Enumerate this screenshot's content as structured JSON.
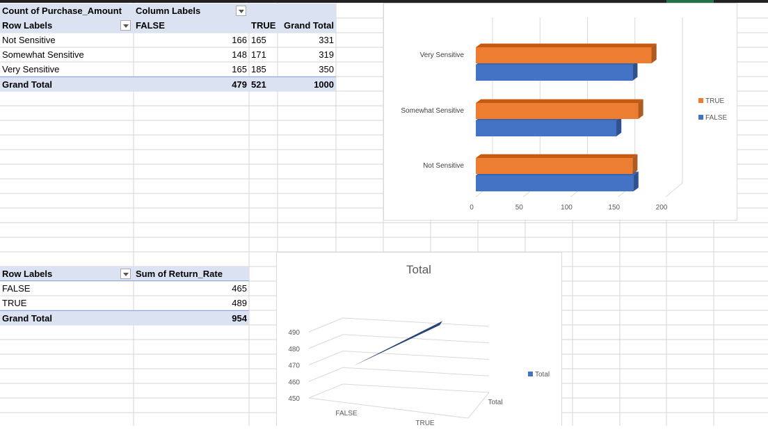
{
  "pivot1": {
    "value_field": "Count of Purchase_Amount",
    "col_labels": "Column Labels",
    "row_labels": "Row Labels",
    "col_false": "FALSE",
    "col_true": "TRUE",
    "col_grand": "Grand Total",
    "rows": [
      {
        "label": "Not Sensitive",
        "false": "166",
        "true": "165",
        "total": "331"
      },
      {
        "label": "Somewhat Sensitive",
        "false": "148",
        "true": "171",
        "total": "319"
      },
      {
        "label": "Very Sensitive",
        "false": "165",
        "true": "185",
        "total": "350"
      }
    ],
    "grand": {
      "label": "Grand Total",
      "false": "479",
      "true": "521",
      "total": "1000"
    }
  },
  "pivot2": {
    "row_labels": "Row Labels",
    "value_field": "Sum of Return_Rate",
    "rows": [
      {
        "label": "FALSE",
        "value": "465"
      },
      {
        "label": "TRUE",
        "value": "489"
      }
    ],
    "grand": {
      "label": "Grand Total",
      "value": "954"
    }
  },
  "chart_data": [
    {
      "type": "bar",
      "orientation": "horizontal-3d",
      "categories": [
        "Not Sensitive",
        "Somewhat Sensitive",
        "Very Sensitive"
      ],
      "series": [
        {
          "name": "FALSE",
          "values": [
            166,
            148,
            165
          ],
          "color": "#4472c4"
        },
        {
          "name": "TRUE",
          "values": [
            165,
            171,
            185
          ],
          "color": "#ed7d31"
        }
      ],
      "x_ticks": [
        "0",
        "50",
        "100",
        "150",
        "200"
      ],
      "xlim": [
        0,
        200
      ],
      "legend": "right",
      "title": ""
    },
    {
      "type": "line",
      "style": "3d",
      "title": "Total",
      "categories": [
        "FALSE",
        "TRUE"
      ],
      "series": [
        {
          "name": "Total",
          "values": [
            465,
            489
          ],
          "color": "#264478"
        }
      ],
      "y_ticks": [
        "450",
        "460",
        "470",
        "480",
        "490"
      ],
      "ylim": [
        450,
        490
      ],
      "depth_label": "Total",
      "legend": "right"
    }
  ]
}
